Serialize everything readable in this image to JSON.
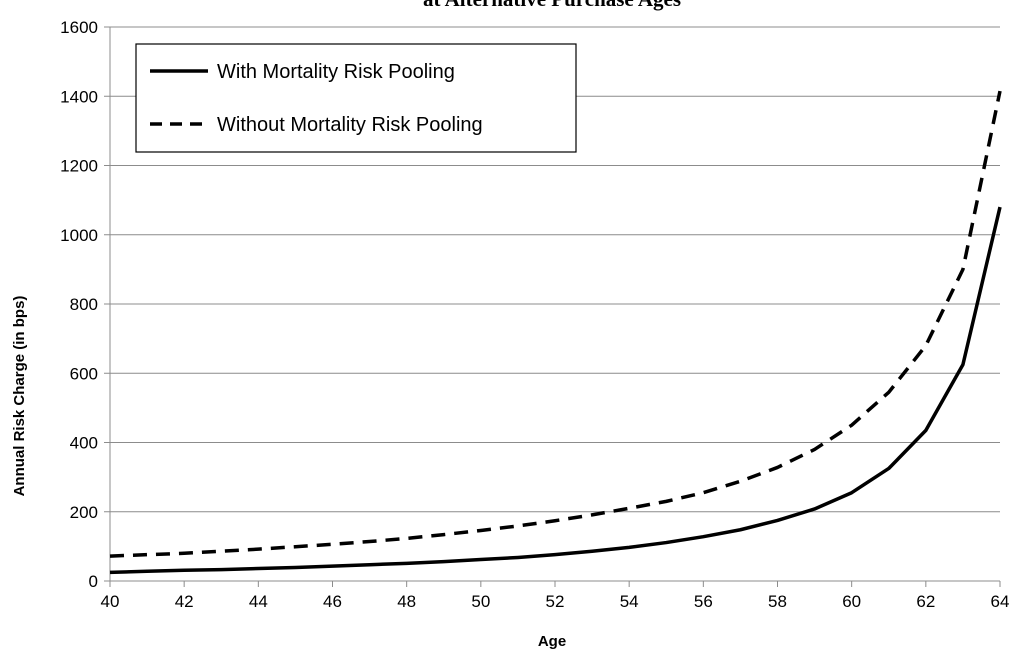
{
  "chart_data": {
    "type": "line",
    "title": "at Alternative Purchase Ages",
    "xlabel": "Age",
    "ylabel": "Annual Risk Charge (in bps)",
    "xlim": [
      40,
      64
    ],
    "ylim": [
      0,
      1600
    ],
    "xticks": [
      "40",
      "42",
      "44",
      "46",
      "48",
      "50",
      "52",
      "54",
      "56",
      "58",
      "60",
      "62",
      "64"
    ],
    "yticks": [
      "0",
      "200",
      "400",
      "600",
      "800",
      "1000",
      "1200",
      "1400",
      "1600"
    ],
    "grid": "horizontal",
    "legend_position": "top-left",
    "x": [
      40,
      41,
      42,
      43,
      44,
      45,
      46,
      47,
      48,
      49,
      50,
      51,
      52,
      53,
      54,
      55,
      56,
      57,
      58,
      59,
      60,
      61,
      62,
      63,
      64
    ],
    "series": [
      {
        "name": "With Mortality Risk Pooling",
        "style": "solid",
        "values": [
          25,
          28,
          31,
          33,
          36,
          39,
          43,
          47,
          51,
          56,
          62,
          68,
          76,
          86,
          97,
          111,
          128,
          148,
          175,
          208,
          255,
          325,
          435,
          625,
          1080
        ]
      },
      {
        "name": "Without Mortality Risk Pooling",
        "style": "dashed",
        "values": [
          72,
          76,
          80,
          86,
          92,
          99,
          106,
          114,
          123,
          134,
          146,
          159,
          174,
          191,
          210,
          230,
          255,
          288,
          328,
          380,
          450,
          545,
          680,
          900,
          1415
        ]
      }
    ]
  }
}
